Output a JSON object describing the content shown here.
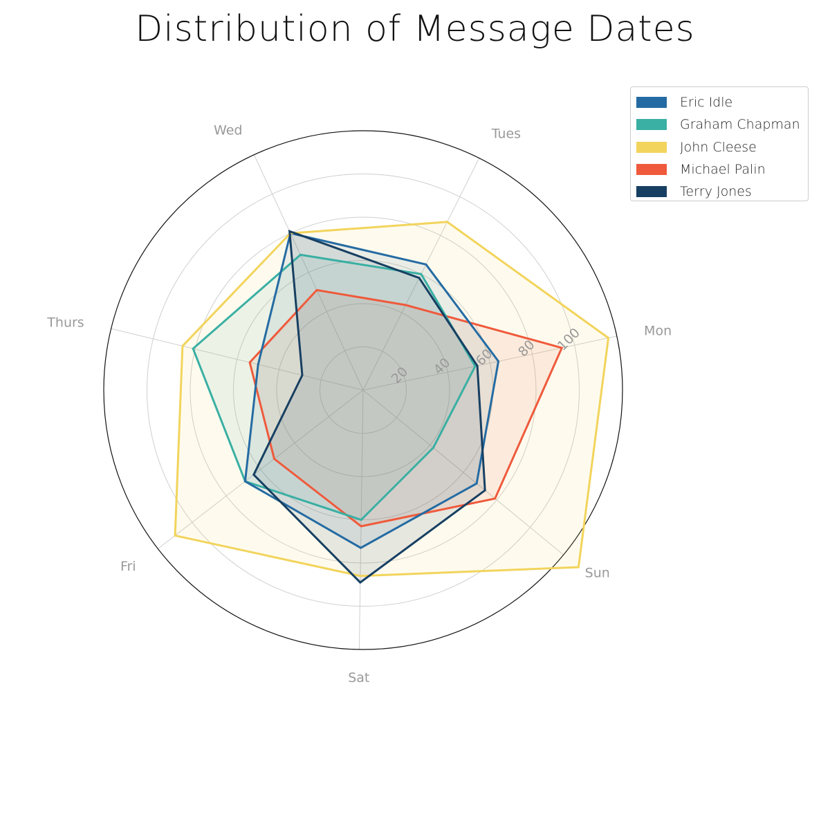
{
  "chart_data": {
    "type": "radar",
    "title": "Distribution of Message Dates",
    "categories": [
      "Mon",
      "Tues",
      "Wed",
      "Thurs",
      "Fri",
      "Sat",
      "Sun"
    ],
    "r_ticks": [
      "20",
      "40",
      "60",
      "80",
      "100"
    ],
    "r_max": 120,
    "grid": true,
    "legend_position": "top-right",
    "series": [
      {
        "name": "Michael Palin",
        "color": "#ef5a3c",
        "values": [
          94,
          44,
          51,
          54,
          52,
          63,
          79
        ]
      },
      {
        "name": "Graham Chapman",
        "color": "#3aafa3",
        "values": [
          53,
          60,
          69,
          81,
          69,
          60,
          42
        ]
      },
      {
        "name": "Eric Idle",
        "color": "#246ba3",
        "values": [
          64,
          65,
          80,
          50,
          69,
          73,
          68
        ]
      },
      {
        "name": "John Cleese",
        "color": "#f2d45c",
        "values": [
          116,
          87,
          80,
          86,
          110,
          86,
          129
        ]
      },
      {
        "name": "Terry Jones",
        "color": "#173f62",
        "values": [
          54,
          58,
          81,
          29,
          64,
          89,
          73
        ]
      }
    ],
    "legend_order": [
      "Eric Idle",
      "Graham Chapman",
      "John Cleese",
      "Michael Palin",
      "Terry Jones"
    ]
  }
}
